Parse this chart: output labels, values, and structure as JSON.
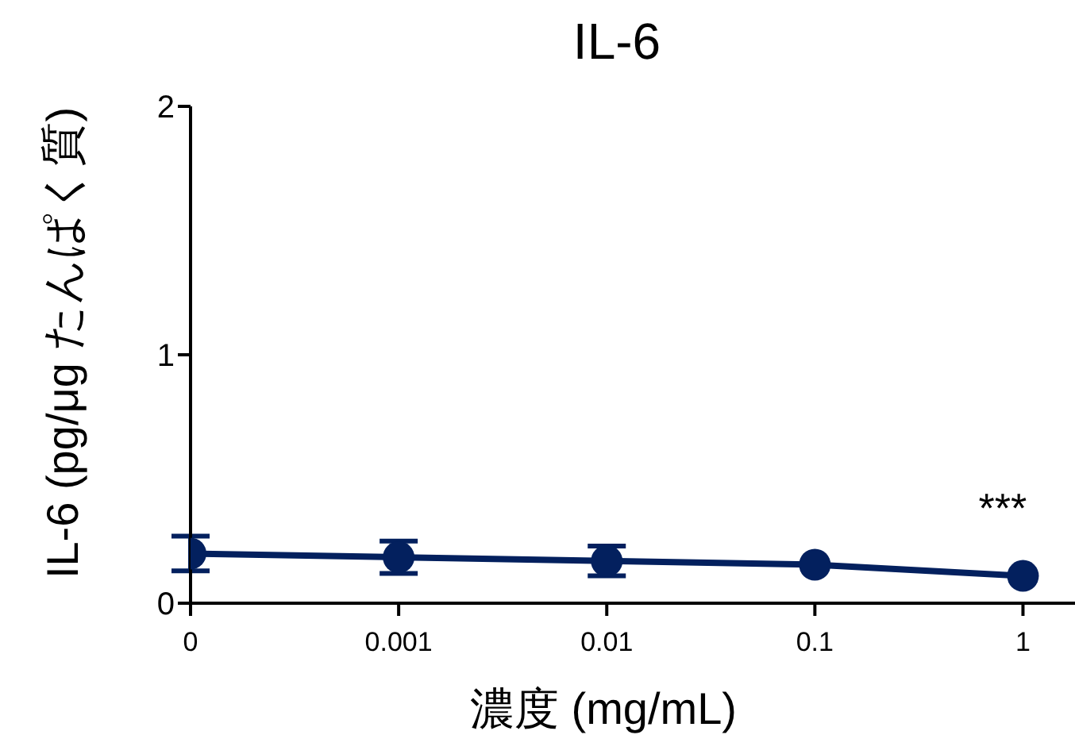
{
  "chart_data": {
    "type": "line",
    "title": "IL-6",
    "xlabel": "濃度 (mg/mL)",
    "ylabel": "IL-6 (pg/μg たんぱく質)",
    "categories": [
      "0",
      "0.001",
      "0.01",
      "0.1",
      "1"
    ],
    "series": [
      {
        "color": "#03205e",
        "values": [
          0.2,
          0.185,
          0.17,
          0.155,
          0.11
        ],
        "errors": [
          0.07,
          0.065,
          0.06,
          null,
          null
        ]
      }
    ],
    "ylim": [
      0,
      2
    ],
    "yticks": [
      0,
      1,
      2
    ],
    "grid": false,
    "legend": false,
    "marker": "circle",
    "line_style": "solid",
    "annotations": [
      {
        "text": "***",
        "x": "1",
        "y": 0.11
      }
    ]
  }
}
